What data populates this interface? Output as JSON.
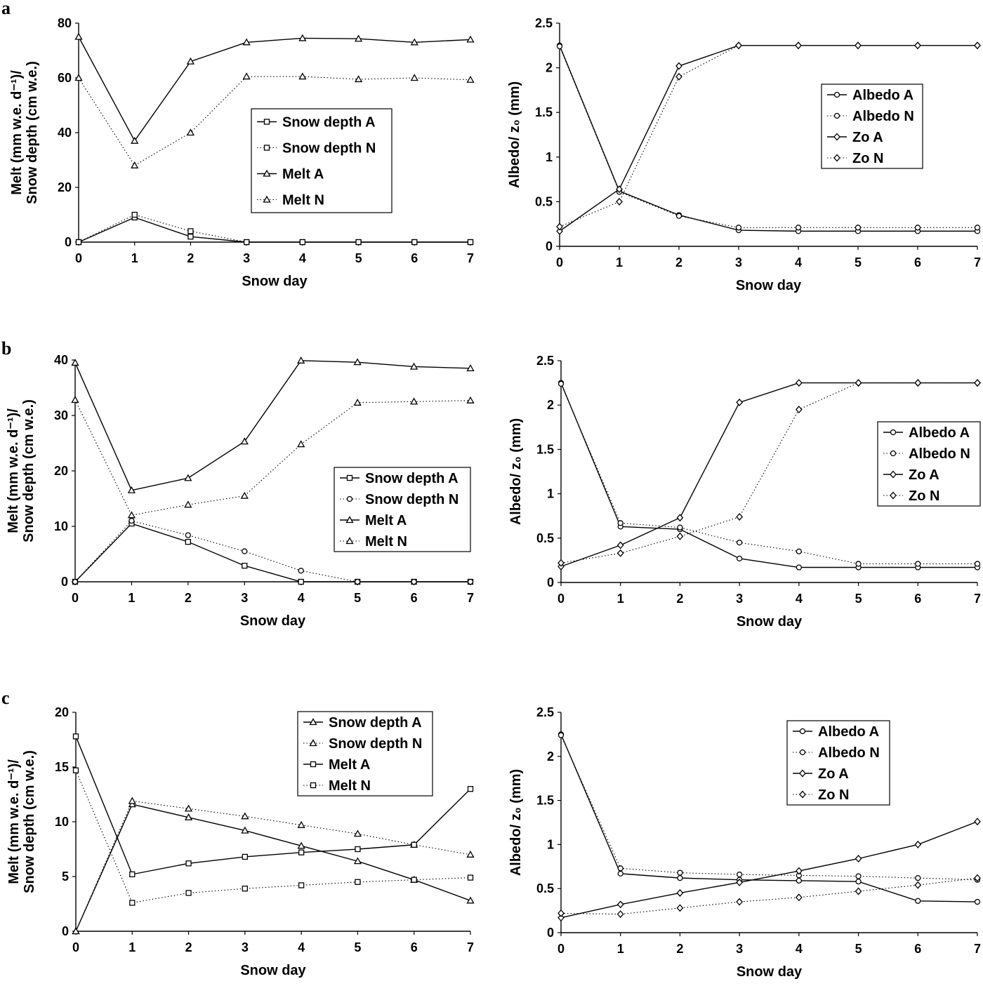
{
  "panel_labels": [
    "a",
    "b",
    "c"
  ],
  "chart_data": [
    {
      "id": "a-left",
      "panel": "a",
      "type": "line",
      "title": "",
      "xlabel": "Snow day",
      "ylabel_line1": "Melt (mm w.e. d⁻¹)/",
      "ylabel_line2": "Snow depth (cm w.e.)",
      "x": [
        0,
        1,
        2,
        3,
        4,
        5,
        6,
        7
      ],
      "xlim": [
        0,
        7
      ],
      "ylim": [
        0,
        80
      ],
      "xticks": [
        "0",
        "1",
        "2",
        "3",
        "4",
        "5",
        "6",
        "7"
      ],
      "yticks": [
        "0",
        "20",
        "40",
        "60",
        "80"
      ],
      "legend_position": "center",
      "series": [
        {
          "name": "Snow depth A",
          "marker": "square",
          "dash": "solid",
          "values": [
            0,
            9,
            2,
            0,
            0,
            0,
            0,
            0
          ]
        },
        {
          "name": "Snow depth N",
          "marker": "square",
          "dash": "dotted",
          "values": [
            0,
            10,
            4,
            0,
            0,
            0,
            0,
            0
          ]
        },
        {
          "name": "Melt A",
          "marker": "triangle",
          "dash": "solid",
          "values": [
            75,
            37,
            66,
            73,
            74.5,
            74.3,
            73,
            74
          ]
        },
        {
          "name": "Melt N",
          "marker": "triangle",
          "dash": "dotted",
          "values": [
            60,
            28,
            40,
            60.5,
            60.5,
            59.5,
            60,
            59.3
          ]
        }
      ]
    },
    {
      "id": "a-right",
      "panel": "a",
      "type": "line",
      "title": "",
      "xlabel": "Snow day",
      "ylabel": "Albedo/ z₀ (mm)",
      "x": [
        0,
        1,
        2,
        3,
        4,
        5,
        6,
        7
      ],
      "xlim": [
        0,
        7
      ],
      "ylim": [
        0,
        2.5
      ],
      "xticks": [
        "0",
        "1",
        "2",
        "3",
        "4",
        "5",
        "6",
        "7"
      ],
      "yticks": [
        "0",
        "0.5",
        "1",
        "1.5",
        "2",
        "2.5"
      ],
      "legend_position": "right",
      "series": [
        {
          "name": "Albedo A",
          "marker": "circle",
          "dash": "solid",
          "values": [
            2.25,
            0.62,
            0.35,
            0.18,
            0.17,
            0.17,
            0.17,
            0.17
          ]
        },
        {
          "name": "Albedo N",
          "marker": "circle",
          "dash": "dotted",
          "values": [
            2.24,
            0.61,
            0.34,
            0.21,
            0.21,
            0.21,
            0.21,
            0.21
          ]
        },
        {
          "name": "Zo A",
          "marker": "diamond",
          "dash": "solid",
          "values": [
            0.17,
            0.64,
            2.02,
            2.25,
            2.25,
            2.25,
            2.25,
            2.25
          ]
        },
        {
          "name": "Zo N",
          "marker": "diamond",
          "dash": "dotted",
          "values": [
            0.22,
            0.5,
            1.9,
            2.25,
            2.25,
            2.25,
            2.25,
            2.25
          ]
        }
      ]
    },
    {
      "id": "b-left",
      "panel": "b",
      "type": "line",
      "title": "",
      "xlabel": "Snow day",
      "ylabel_line1": "Melt (mm w.e. d⁻¹)/",
      "ylabel_line2": "Snow depth (cm w.e.)",
      "x": [
        0,
        1,
        2,
        3,
        4,
        5,
        6,
        7
      ],
      "xlim": [
        0,
        7
      ],
      "ylim": [
        0,
        40
      ],
      "xticks": [
        "0",
        "1",
        "2",
        "3",
        "4",
        "5",
        "6",
        "7"
      ],
      "yticks": [
        "0",
        "10",
        "20",
        "30",
        "40"
      ],
      "legend_position": "right",
      "series": [
        {
          "name": "Snow depth A",
          "marker": "square",
          "dash": "solid",
          "values": [
            0,
            10.5,
            7.2,
            2.9,
            0,
            0,
            0,
            0
          ]
        },
        {
          "name": "Snow depth N",
          "marker": "circle",
          "dash": "dotted",
          "values": [
            0,
            11,
            8.4,
            5.5,
            2,
            0,
            0,
            0
          ]
        },
        {
          "name": "Melt A",
          "marker": "triangle",
          "dash": "solid",
          "values": [
            39.5,
            16.5,
            18.7,
            25.3,
            39.9,
            39.6,
            38.8,
            38.5
          ]
        },
        {
          "name": "Melt N",
          "marker": "triangle",
          "dash": "dotted",
          "values": [
            32.8,
            12,
            13.9,
            15.5,
            24.8,
            32.3,
            32.5,
            32.7
          ]
        }
      ]
    },
    {
      "id": "b-right",
      "panel": "b",
      "type": "line",
      "title": "",
      "xlabel": "Snow day",
      "ylabel": "Albedo/ z₀ (mm)",
      "x": [
        0,
        1,
        2,
        3,
        4,
        5,
        6,
        7
      ],
      "xlim": [
        0,
        7
      ],
      "ylim": [
        0,
        2.5
      ],
      "xticks": [
        "0",
        "1",
        "2",
        "3",
        "4",
        "5",
        "6",
        "7"
      ],
      "yticks": [
        "0",
        "0.5",
        "1",
        "1.5",
        "2",
        "2.5"
      ],
      "legend_position": "right",
      "series": [
        {
          "name": "Albedo A",
          "marker": "circle",
          "dash": "solid",
          "values": [
            2.25,
            0.63,
            0.6,
            0.27,
            0.17,
            0.17,
            0.17,
            0.17
          ]
        },
        {
          "name": "Albedo N",
          "marker": "circle",
          "dash": "dotted",
          "values": [
            2.24,
            0.67,
            0.62,
            0.45,
            0.35,
            0.21,
            0.21,
            0.21
          ]
        },
        {
          "name": "Zo A",
          "marker": "diamond",
          "dash": "solid",
          "values": [
            0.18,
            0.42,
            0.73,
            2.03,
            2.25,
            2.25,
            2.25,
            2.25
          ]
        },
        {
          "name": "Zo N",
          "marker": "diamond",
          "dash": "dotted",
          "values": [
            0.22,
            0.33,
            0.52,
            0.74,
            1.95,
            2.25,
            2.25,
            2.25
          ]
        }
      ]
    },
    {
      "id": "c-left",
      "panel": "c",
      "type": "line",
      "title": "",
      "xlabel": "Snow day",
      "ylabel_line1": "Melt (mm w.e. d⁻¹)/",
      "ylabel_line2": "Snow depth (cm w.e.)",
      "x": [
        0,
        1,
        2,
        3,
        4,
        5,
        6,
        7
      ],
      "xlim": [
        0,
        7
      ],
      "ylim": [
        0,
        20
      ],
      "xticks": [
        "0",
        "1",
        "2",
        "3",
        "4",
        "5",
        "6",
        "7"
      ],
      "yticks": [
        "0",
        "5",
        "10",
        "15",
        "20"
      ],
      "legend_position": "top-right",
      "series": [
        {
          "name": "Snow depth A",
          "marker": "triangle",
          "dash": "solid",
          "values": [
            0,
            11.6,
            10.4,
            9.2,
            7.8,
            6.4,
            4.7,
            2.8
          ]
        },
        {
          "name": "Snow depth N",
          "marker": "triangle",
          "dash": "dotted",
          "values": [
            0,
            11.9,
            11.2,
            10.5,
            9.7,
            8.9,
            7.9,
            7
          ]
        },
        {
          "name": "Melt A",
          "marker": "square",
          "dash": "solid",
          "values": [
            17.8,
            5.2,
            6.2,
            6.8,
            7.2,
            7.5,
            7.9,
            13
          ]
        },
        {
          "name": "Melt N",
          "marker": "square",
          "dash": "dotted",
          "values": [
            14.7,
            2.6,
            3.5,
            3.9,
            4.2,
            4.5,
            4.7,
            4.9
          ]
        }
      ]
    },
    {
      "id": "c-right",
      "panel": "c",
      "type": "line",
      "title": "",
      "xlabel": "Snow day",
      "ylabel": "Albedo/ z₀ (mm)",
      "x": [
        0,
        1,
        2,
        3,
        4,
        5,
        6,
        7
      ],
      "xlim": [
        0,
        7
      ],
      "ylim": [
        0,
        2.5
      ],
      "xticks": [
        "0",
        "1",
        "2",
        "3",
        "4",
        "5",
        "6",
        "7"
      ],
      "yticks": [
        "0",
        "0.5",
        "1",
        "1.5",
        "2",
        "2.5"
      ],
      "legend_position": "top-right",
      "series": [
        {
          "name": "Albedo A",
          "marker": "circle",
          "dash": "solid",
          "values": [
            2.25,
            0.67,
            0.62,
            0.6,
            0.59,
            0.58,
            0.36,
            0.35
          ]
        },
        {
          "name": "Albedo N",
          "marker": "circle",
          "dash": "dotted",
          "values": [
            2.24,
            0.73,
            0.68,
            0.66,
            0.65,
            0.64,
            0.62,
            0.6
          ]
        },
        {
          "name": "Zo A",
          "marker": "diamond",
          "dash": "solid",
          "values": [
            0.17,
            0.32,
            0.45,
            0.57,
            0.7,
            0.84,
            1,
            1.26
          ]
        },
        {
          "name": "Zo N",
          "marker": "diamond",
          "dash": "dotted",
          "values": [
            0.22,
            0.21,
            0.28,
            0.35,
            0.4,
            0.47,
            0.54,
            0.62
          ]
        }
      ]
    }
  ]
}
